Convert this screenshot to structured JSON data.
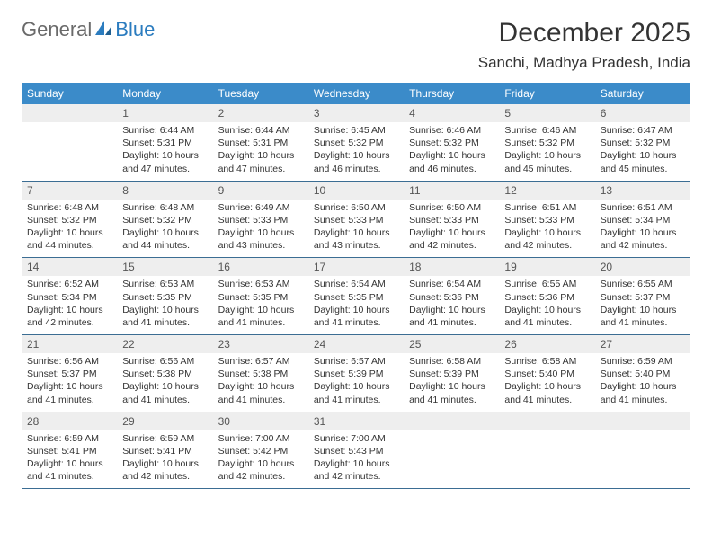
{
  "logo": {
    "part1": "General",
    "part2": "Blue"
  },
  "title": "December 2025",
  "location": "Sanchi, Madhya Pradesh, India",
  "colors": {
    "header_bg": "#3b8bc9",
    "header_text": "#ffffff",
    "daynum_bg": "#eeeeee",
    "row_border": "#3b6d93",
    "logo_gray": "#6a6a6a",
    "logo_blue": "#2b7cbf"
  },
  "weekdays": [
    "Sunday",
    "Monday",
    "Tuesday",
    "Wednesday",
    "Thursday",
    "Friday",
    "Saturday"
  ],
  "weeks": [
    [
      null,
      {
        "n": "1",
        "sr": "6:44 AM",
        "ss": "5:31 PM",
        "dl": "10 hours and 47 minutes."
      },
      {
        "n": "2",
        "sr": "6:44 AM",
        "ss": "5:31 PM",
        "dl": "10 hours and 47 minutes."
      },
      {
        "n": "3",
        "sr": "6:45 AM",
        "ss": "5:32 PM",
        "dl": "10 hours and 46 minutes."
      },
      {
        "n": "4",
        "sr": "6:46 AM",
        "ss": "5:32 PM",
        "dl": "10 hours and 46 minutes."
      },
      {
        "n": "5",
        "sr": "6:46 AM",
        "ss": "5:32 PM",
        "dl": "10 hours and 45 minutes."
      },
      {
        "n": "6",
        "sr": "6:47 AM",
        "ss": "5:32 PM",
        "dl": "10 hours and 45 minutes."
      }
    ],
    [
      {
        "n": "7",
        "sr": "6:48 AM",
        "ss": "5:32 PM",
        "dl": "10 hours and 44 minutes."
      },
      {
        "n": "8",
        "sr": "6:48 AM",
        "ss": "5:32 PM",
        "dl": "10 hours and 44 minutes."
      },
      {
        "n": "9",
        "sr": "6:49 AM",
        "ss": "5:33 PM",
        "dl": "10 hours and 43 minutes."
      },
      {
        "n": "10",
        "sr": "6:50 AM",
        "ss": "5:33 PM",
        "dl": "10 hours and 43 minutes."
      },
      {
        "n": "11",
        "sr": "6:50 AM",
        "ss": "5:33 PM",
        "dl": "10 hours and 42 minutes."
      },
      {
        "n": "12",
        "sr": "6:51 AM",
        "ss": "5:33 PM",
        "dl": "10 hours and 42 minutes."
      },
      {
        "n": "13",
        "sr": "6:51 AM",
        "ss": "5:34 PM",
        "dl": "10 hours and 42 minutes."
      }
    ],
    [
      {
        "n": "14",
        "sr": "6:52 AM",
        "ss": "5:34 PM",
        "dl": "10 hours and 42 minutes."
      },
      {
        "n": "15",
        "sr": "6:53 AM",
        "ss": "5:35 PM",
        "dl": "10 hours and 41 minutes."
      },
      {
        "n": "16",
        "sr": "6:53 AM",
        "ss": "5:35 PM",
        "dl": "10 hours and 41 minutes."
      },
      {
        "n": "17",
        "sr": "6:54 AM",
        "ss": "5:35 PM",
        "dl": "10 hours and 41 minutes."
      },
      {
        "n": "18",
        "sr": "6:54 AM",
        "ss": "5:36 PM",
        "dl": "10 hours and 41 minutes."
      },
      {
        "n": "19",
        "sr": "6:55 AM",
        "ss": "5:36 PM",
        "dl": "10 hours and 41 minutes."
      },
      {
        "n": "20",
        "sr": "6:55 AM",
        "ss": "5:37 PM",
        "dl": "10 hours and 41 minutes."
      }
    ],
    [
      {
        "n": "21",
        "sr": "6:56 AM",
        "ss": "5:37 PM",
        "dl": "10 hours and 41 minutes."
      },
      {
        "n": "22",
        "sr": "6:56 AM",
        "ss": "5:38 PM",
        "dl": "10 hours and 41 minutes."
      },
      {
        "n": "23",
        "sr": "6:57 AM",
        "ss": "5:38 PM",
        "dl": "10 hours and 41 minutes."
      },
      {
        "n": "24",
        "sr": "6:57 AM",
        "ss": "5:39 PM",
        "dl": "10 hours and 41 minutes."
      },
      {
        "n": "25",
        "sr": "6:58 AM",
        "ss": "5:39 PM",
        "dl": "10 hours and 41 minutes."
      },
      {
        "n": "26",
        "sr": "6:58 AM",
        "ss": "5:40 PM",
        "dl": "10 hours and 41 minutes."
      },
      {
        "n": "27",
        "sr": "6:59 AM",
        "ss": "5:40 PM",
        "dl": "10 hours and 41 minutes."
      }
    ],
    [
      {
        "n": "28",
        "sr": "6:59 AM",
        "ss": "5:41 PM",
        "dl": "10 hours and 41 minutes."
      },
      {
        "n": "29",
        "sr": "6:59 AM",
        "ss": "5:41 PM",
        "dl": "10 hours and 42 minutes."
      },
      {
        "n": "30",
        "sr": "7:00 AM",
        "ss": "5:42 PM",
        "dl": "10 hours and 42 minutes."
      },
      {
        "n": "31",
        "sr": "7:00 AM",
        "ss": "5:43 PM",
        "dl": "10 hours and 42 minutes."
      },
      null,
      null,
      null
    ]
  ],
  "labels": {
    "sunrise": "Sunrise:",
    "sunset": "Sunset:",
    "daylight": "Daylight:"
  }
}
